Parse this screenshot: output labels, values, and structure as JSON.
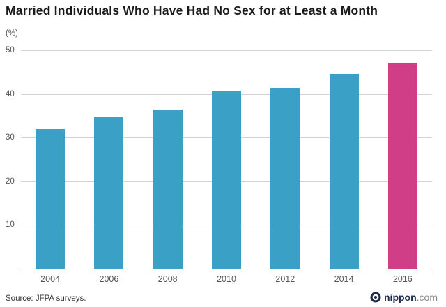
{
  "title": "Married Individuals Who Have Had No Sex for at Least a Month",
  "unit_label": "(%)",
  "source": "Source: JFPA surveys.",
  "logo": {
    "name": "nippon",
    "suffix": ".com"
  },
  "chart_data": {
    "type": "bar",
    "title": "Married Individuals Who Have Had No Sex for at Least a Month",
    "categories": [
      "2004",
      "2006",
      "2008",
      "2010",
      "2012",
      "2014",
      "2016"
    ],
    "values": [
      31.9,
      34.6,
      36.5,
      40.8,
      41.3,
      44.6,
      47.2
    ],
    "xlabel": "",
    "ylabel": "(%)",
    "ylim": [
      0,
      50
    ],
    "yticks": [
      50,
      40,
      30,
      20,
      10
    ],
    "grid": true,
    "legend": false,
    "bar_color": "#3ba0c5",
    "highlight_color": "#cf3e86",
    "highlight_index": 6
  }
}
